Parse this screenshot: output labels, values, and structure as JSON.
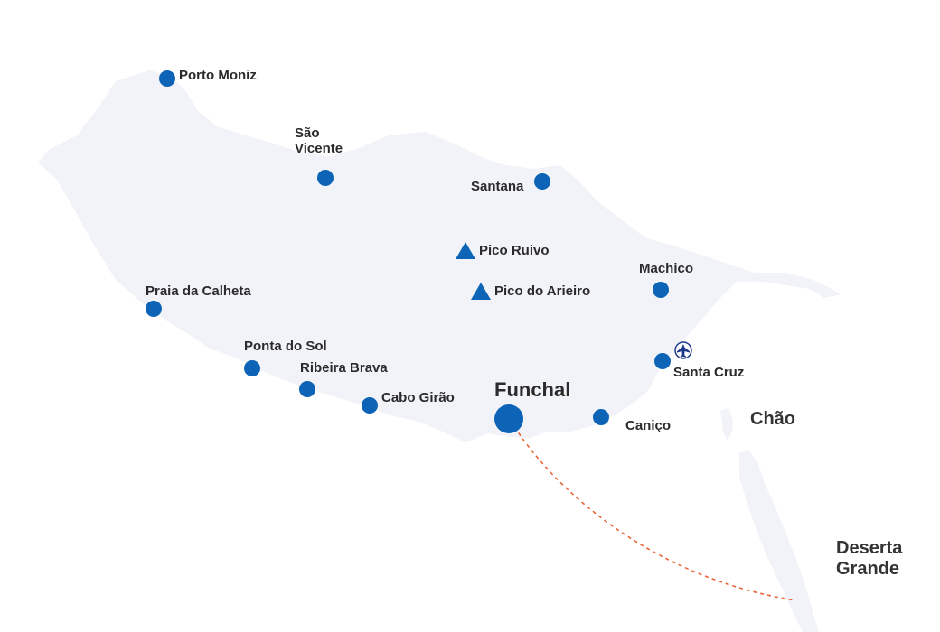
{
  "colors": {
    "land": "#f1f3f8",
    "marker": "#0d64b7",
    "route": "#e8673a",
    "text": "#2b2b2b",
    "airport": "#1f3a8a"
  },
  "places": {
    "porto_moniz": "Porto Moniz",
    "sao_vicente_line1": "São",
    "sao_vicente_line2": "Vicente",
    "santana": "Santana",
    "pico_ruivo": "Pico Ruivo",
    "pico_do_arieiro": "Pico do Arieiro",
    "machico": "Machico",
    "praia_da_calheta": "Praia da Calheta",
    "ponta_do_sol": "Ponta do Sol",
    "ribeira_brava": "Ribeira Brava",
    "cabo_girao": "Cabo Girão",
    "funchal": "Funchal",
    "canico": "Caniço",
    "santa_cruz": "Santa Cruz"
  },
  "islands": {
    "chao": "Chão",
    "deserta_grande_line1": "Deserta",
    "deserta_grande_line2": "Grande"
  },
  "icons": {
    "town": "circle-marker",
    "peak": "triangle-marker",
    "airport": "airplane-icon"
  }
}
